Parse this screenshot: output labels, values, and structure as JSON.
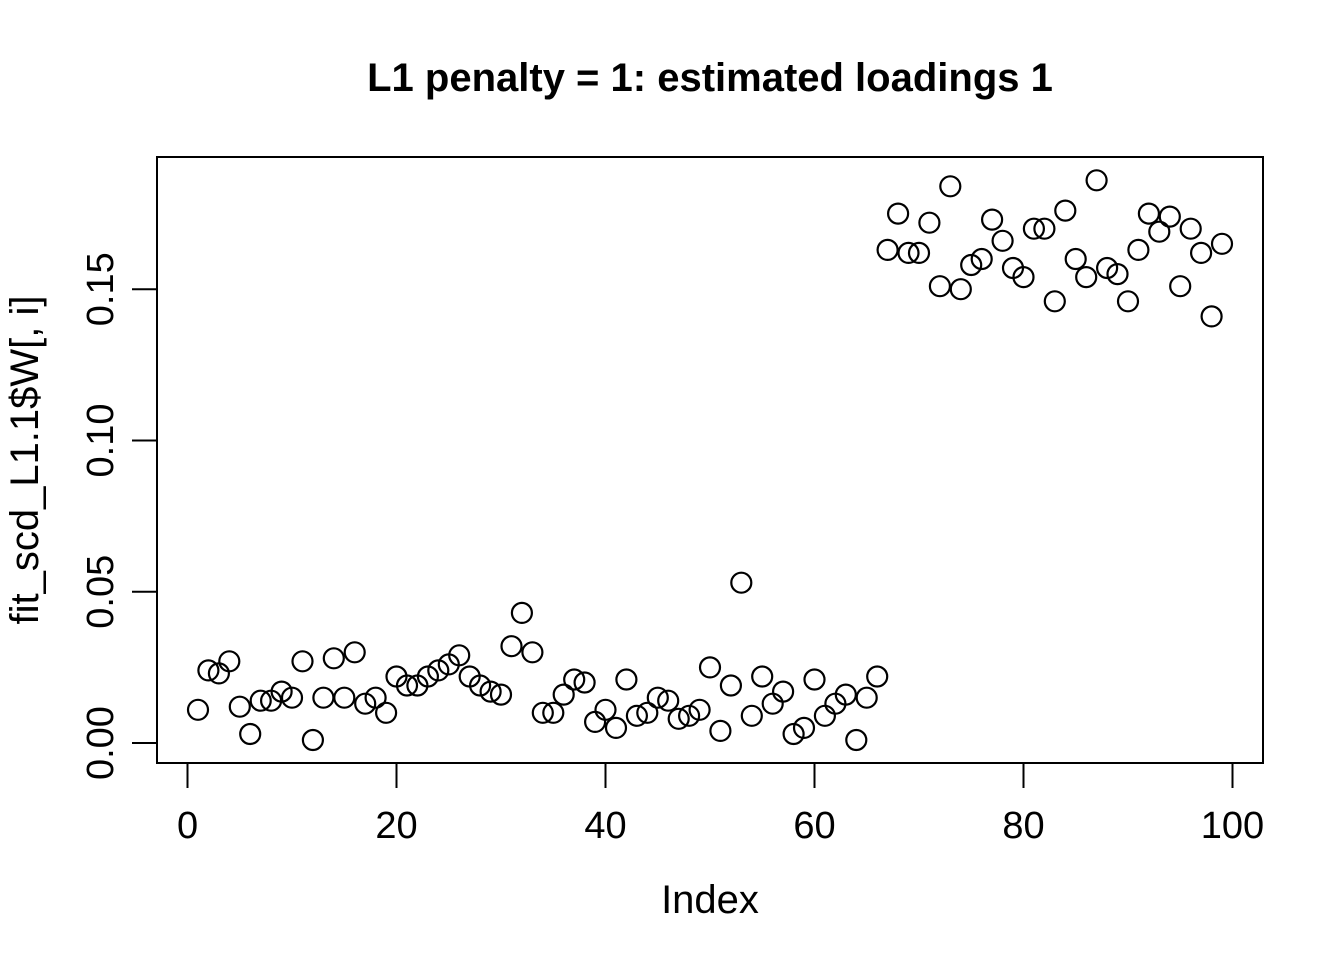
{
  "colors": {
    "foreground": "#000000",
    "background": "#ffffff"
  },
  "chart_data": {
    "type": "scatter",
    "title": "L1 penalty = 1: estimated loadings 1",
    "xlabel": "Index",
    "ylabel": "fit_scd_L1.1$W[, i]",
    "x_ticks": [
      0,
      20,
      40,
      60,
      80,
      100
    ],
    "x_tick_labels": [
      "0",
      "20",
      "40",
      "60",
      "80",
      "100"
    ],
    "y_ticks": [
      0,
      0.05,
      0.1,
      0.15
    ],
    "y_tick_labels": [
      "0.00",
      "0.05",
      "0.10",
      "0.15"
    ],
    "x_range": [
      -2.92,
      102.92
    ],
    "y_range": [
      -0.0066,
      0.1937
    ],
    "grid": false,
    "legend_position": "none",
    "marker": {
      "shape": "open-circle",
      "radius_px": 10,
      "stroke_px": 2.2,
      "color": "#000000"
    },
    "x": [
      1,
      2,
      3,
      4,
      5,
      6,
      7,
      8,
      9,
      10,
      11,
      12,
      13,
      14,
      15,
      16,
      17,
      18,
      19,
      20,
      21,
      22,
      23,
      24,
      25,
      26,
      27,
      28,
      29,
      30,
      31,
      32,
      33,
      34,
      35,
      36,
      37,
      38,
      39,
      40,
      41,
      42,
      43,
      44,
      45,
      46,
      47,
      48,
      49,
      50,
      51,
      52,
      53,
      54,
      55,
      56,
      57,
      58,
      59,
      60,
      61,
      62,
      63,
      64,
      65,
      66,
      67,
      68,
      69,
      70,
      71,
      72,
      73,
      74,
      75,
      76,
      77,
      78,
      79,
      80,
      81,
      82,
      83,
      84,
      85,
      86,
      87,
      88,
      89,
      90,
      91,
      92,
      93,
      94,
      95,
      96,
      97,
      98,
      99
    ],
    "y": [
      0.011,
      0.024,
      0.023,
      0.027,
      0.012,
      0.003,
      0.014,
      0.014,
      0.017,
      0.015,
      0.027,
      0.001,
      0.015,
      0.028,
      0.015,
      0.03,
      0.013,
      0.015,
      0.01,
      0.022,
      0.019,
      0.019,
      0.022,
      0.024,
      0.026,
      0.029,
      0.022,
      0.019,
      0.017,
      0.016,
      0.032,
      0.043,
      0.03,
      0.01,
      0.01,
      0.016,
      0.021,
      0.02,
      0.007,
      0.011,
      0.005,
      0.021,
      0.009,
      0.01,
      0.015,
      0.014,
      0.008,
      0.009,
      0.011,
      0.025,
      0.004,
      0.019,
      0.053,
      0.009,
      0.022,
      0.013,
      0.017,
      0.003,
      0.005,
      0.021,
      0.009,
      0.013,
      0.016,
      0.001,
      0.015,
      0.022,
      0.163,
      0.175,
      0.162,
      0.162,
      0.172,
      0.151,
      0.184,
      0.15,
      0.158,
      0.16,
      0.173,
      0.166,
      0.157,
      0.154,
      0.17,
      0.17,
      0.146,
      0.176,
      0.16,
      0.154,
      0.186,
      0.157,
      0.155,
      0.146,
      0.163,
      0.175,
      0.169,
      0.174,
      0.151,
      0.17,
      0.162,
      0.141,
      0.165
    ]
  }
}
